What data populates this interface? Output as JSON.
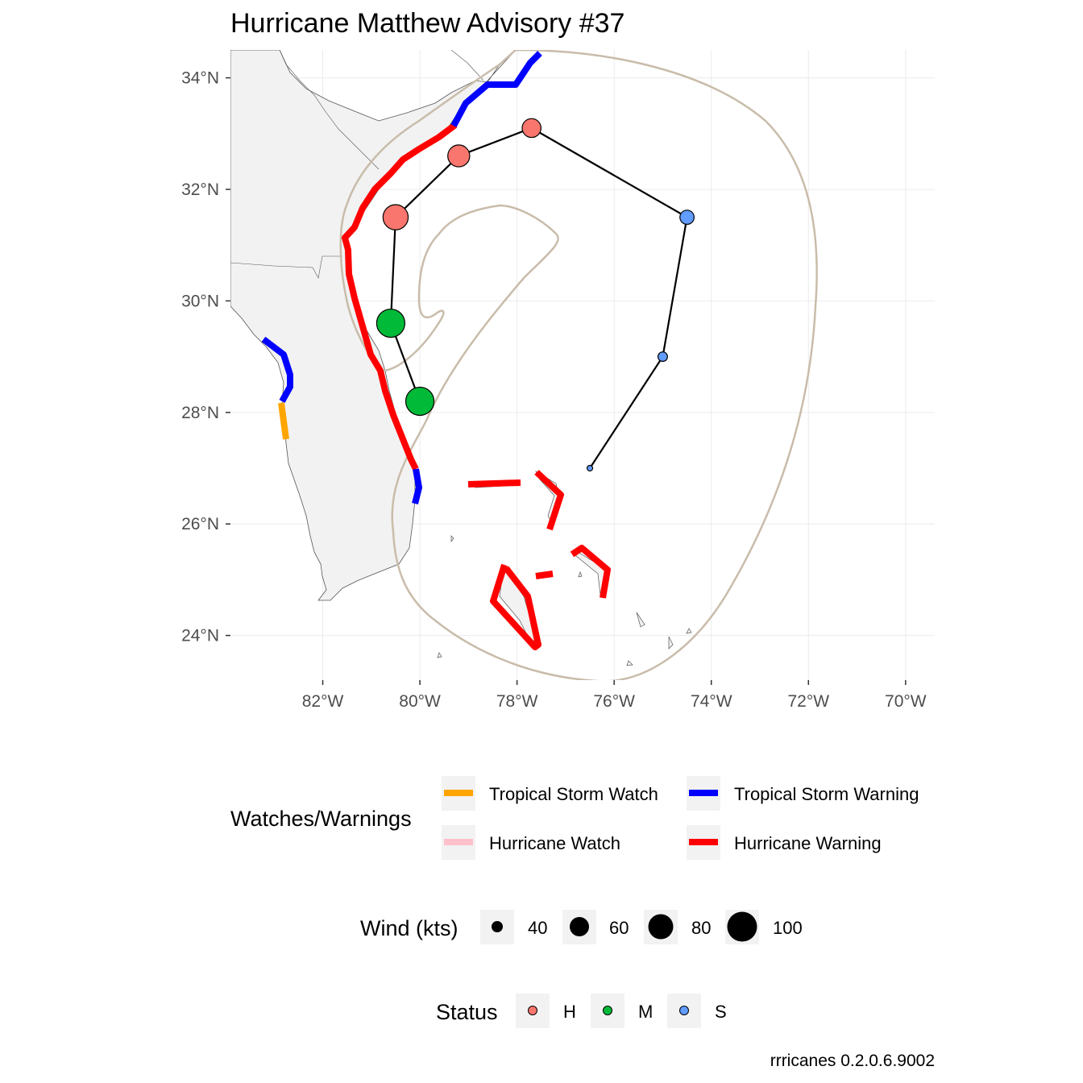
{
  "title": "Hurricane Matthew Advisory #37",
  "caption": "rrricanes 0.2.0.6.9002",
  "colors": {
    "land": "#f2f2f2",
    "grid": "#ebebeb",
    "cone": "#c9bcaa",
    "track": "#000000",
    "status_H": "#f8766d",
    "status_M": "#00ba38",
    "status_S": "#619cff",
    "ts_watch": "#ffa500",
    "ts_warning": "#0000ff",
    "hu_watch": "#ffc0cb",
    "hu_warning": "#ff0000"
  },
  "axes": {
    "x_ticks": [
      "82°W",
      "80°W",
      "78°W",
      "76°W",
      "74°W",
      "72°W",
      "70°W"
    ],
    "x_values": [
      -82,
      -80,
      -78,
      -76,
      -74,
      -72,
      -70
    ],
    "y_ticks": [
      "34°N",
      "32°N",
      "30°N",
      "28°N",
      "26°N",
      "24°N"
    ],
    "y_values": [
      34,
      32,
      30,
      28,
      26,
      24
    ],
    "xlim": [
      -83.9,
      -69.4
    ],
    "ylim": [
      23.2,
      34.5
    ]
  },
  "chart_data": {
    "type": "scatter",
    "title": "Hurricane Matthew Advisory #37",
    "track": [
      {
        "lon": -80.0,
        "lat": 28.2,
        "wind": 105,
        "status": "M"
      },
      {
        "lon": -80.6,
        "lat": 29.6,
        "wind": 105,
        "status": "M"
      },
      {
        "lon": -80.5,
        "lat": 31.5,
        "wind": 95,
        "status": "H"
      },
      {
        "lon": -79.2,
        "lat": 32.6,
        "wind": 85,
        "status": "H"
      },
      {
        "lon": -77.7,
        "lat": 33.1,
        "wind": 75,
        "status": "H"
      },
      {
        "lon": -74.5,
        "lat": 31.5,
        "wind": 60,
        "status": "S"
      },
      {
        "lon": -75.0,
        "lat": 29.0,
        "wind": 45,
        "status": "S"
      },
      {
        "lon": -76.5,
        "lat": 27.0,
        "wind": 30,
        "status": "S"
      }
    ]
  },
  "legend": {
    "warnings": {
      "title": "Watches/Warnings",
      "items": [
        {
          "label": "Tropical Storm Watch",
          "color": "#ffa500"
        },
        {
          "label": "Tropical Storm Warning",
          "color": "#0000ff"
        },
        {
          "label": "Hurricane Watch",
          "color": "#ffc0cb"
        },
        {
          "label": "Hurricane Warning",
          "color": "#ff0000"
        }
      ]
    },
    "wind": {
      "title": "Wind (kts)",
      "items": [
        {
          "label": "40",
          "value": 40
        },
        {
          "label": "60",
          "value": 60
        },
        {
          "label": "80",
          "value": 80
        },
        {
          "label": "100",
          "value": 100
        }
      ]
    },
    "status": {
      "title": "Status",
      "items": [
        {
          "label": "H",
          "color": "#f8766d"
        },
        {
          "label": "M",
          "color": "#00ba38"
        },
        {
          "label": "S",
          "color": "#619cff"
        }
      ]
    }
  }
}
